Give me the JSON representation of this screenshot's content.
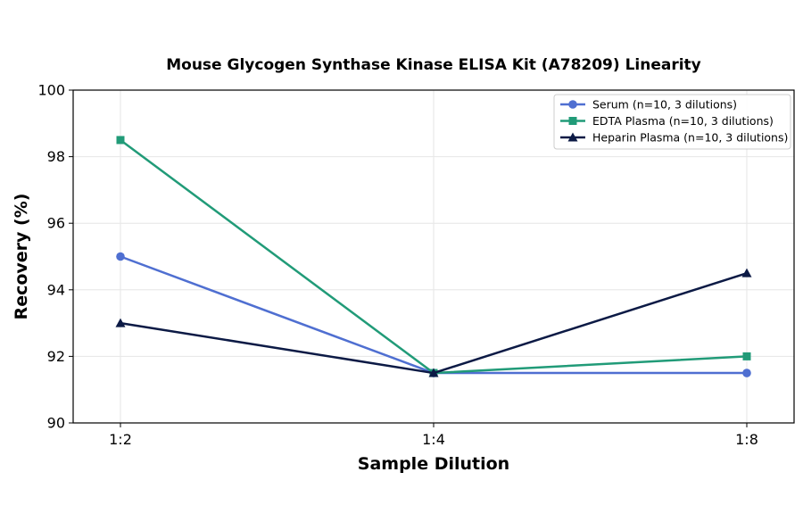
{
  "chart_data": {
    "type": "line",
    "title": "Mouse Glycogen Synthase Kinase ELISA Kit (A78209) Linearity",
    "xlabel": "Sample Dilution",
    "ylabel": "Recovery (%)",
    "categories": [
      "1:2",
      "1:4",
      "1:8"
    ],
    "ylim": [
      90,
      100
    ],
    "yticks": [
      90,
      92,
      94,
      96,
      98,
      100
    ],
    "grid": true,
    "legend_position": "top-right",
    "series": [
      {
        "name": "Serum (n=10, 3 dilutions)",
        "values": [
          95.0,
          91.5,
          91.5
        ],
        "color": "#4f6fd1",
        "marker": "circle"
      },
      {
        "name": "EDTA Plasma (n=10, 3 dilutions)",
        "values": [
          98.5,
          91.5,
          92.0
        ],
        "color": "#219b78",
        "marker": "square"
      },
      {
        "name": "Heparin Plasma (n=10, 3 dilutions)",
        "values": [
          93.0,
          91.5,
          94.5
        ],
        "color": "#0c1a45",
        "marker": "triangle"
      }
    ]
  }
}
